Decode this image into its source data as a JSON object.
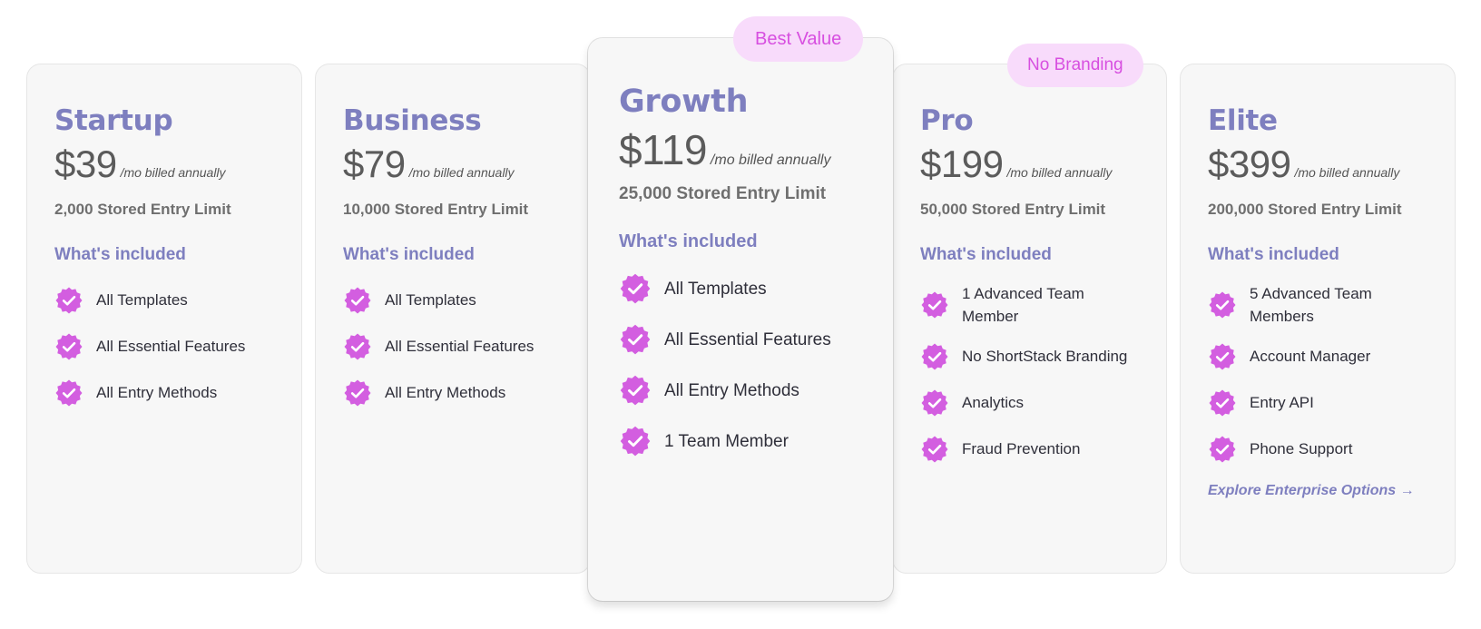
{
  "colors": {
    "accent": "#7e7fbf",
    "badge_bg": "#f8dbfb",
    "badge_text": "#d74fe0",
    "check": "#d35ee0",
    "card_bg": "#f7f7f7"
  },
  "plans": [
    {
      "name": "Startup",
      "price": "$39",
      "billing": "/mo billed annually",
      "limit": "2,000 Stored Entry Limit",
      "included_heading": "What's included",
      "features": [
        "All Templates",
        "All Essential Features",
        "All Entry Methods"
      ]
    },
    {
      "name": "Business",
      "price": "$79",
      "billing": "/mo billed annually",
      "limit": "10,000 Stored Entry Limit",
      "included_heading": "What's included",
      "features": [
        "All Templates",
        "All Essential Features",
        "All Entry Methods"
      ]
    },
    {
      "name": "Growth",
      "badge": "Best Value",
      "price": "$119",
      "billing": "/mo billed annually",
      "limit": "25,000 Stored Entry Limit",
      "included_heading": "What's included",
      "features": [
        "All Templates",
        "All Essential Features",
        "All Entry Methods",
        "1 Team Member"
      ]
    },
    {
      "name": "Pro",
      "badge": "No Branding",
      "price": "$199",
      "billing": "/mo billed annually",
      "limit": "50,000 Stored Entry Limit",
      "included_heading": "What's included",
      "features": [
        "1 Advanced Team Member",
        "No ShortStack Branding",
        "Analytics",
        "Fraud Prevention"
      ]
    },
    {
      "name": "Elite",
      "price": "$399",
      "billing": "/mo billed annually",
      "limit": "200,000 Stored Entry Limit",
      "included_heading": "What's included",
      "features": [
        "5 Advanced Team Members",
        "Account Manager",
        "Entry API",
        "Phone Support"
      ],
      "link": "Explore Enterprise Options →"
    }
  ]
}
